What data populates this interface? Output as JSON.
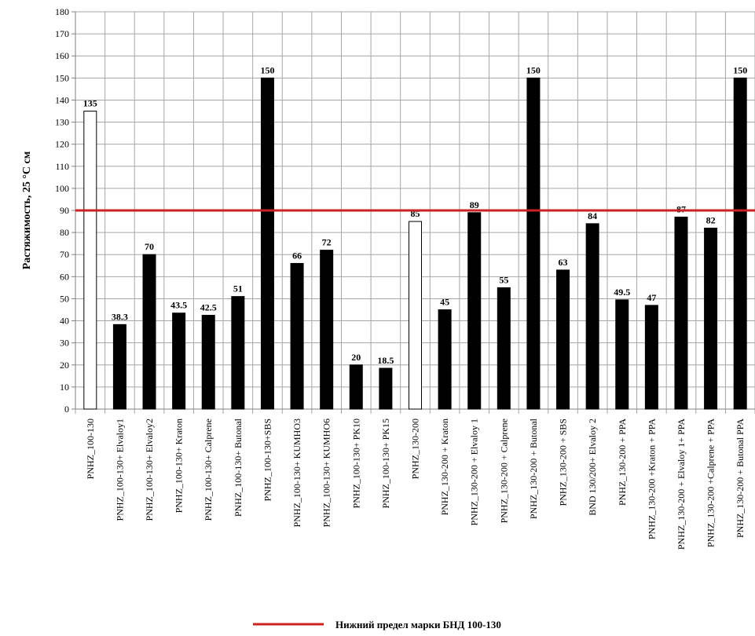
{
  "chart_data": {
    "type": "bar",
    "ylabel": "Растяжимость, 25 °С см",
    "xlabel": "",
    "ylim": [
      0,
      180
    ],
    "ytick_step": 10,
    "grid": true,
    "legend_position": "bottom",
    "categories": [
      "PNHZ_100-130",
      "PNHZ_100-130+ Elvaloy1",
      "PNHZ_100-130+ Elvaloy2",
      "PNHZ_100-130+ Kraton",
      "PNHZ_100-130+ Calprene",
      "PNHZ_100-130+ Butonal",
      "PNHZ_100-130+SBS",
      "PNHZ_100-130+ KUMHO3",
      "PNHZ_100-130+ KUMHO6",
      "PNHZ_100-130+ PK10",
      "PNHZ_100-130+ PK15",
      "PNHZ_130-200",
      "PNHZ_130-200 + Kraton",
      "PNHZ_130-200 + Elvaloy 1",
      "PNHZ_130-200 + Calprene",
      "PNHZ_130-200 + Butonal",
      "PNHZ_130-200 + SBS",
      "BND 130/200+ Elvaloy 2",
      "PNHZ_130-200 + PPA",
      "PNHZ_130-200 +Kraton + PPA",
      "PNHZ_130-200 + Elvaloy 1+ PPA",
      "PNHZ_130-200 +Calprene + PPA",
      "PNHZ_130-200 + Butonal PPA"
    ],
    "values": [
      135,
      38.3,
      70,
      43.5,
      42.5,
      51,
      150,
      66,
      72,
      20,
      18.5,
      85,
      45,
      89,
      55,
      150,
      63,
      84,
      49.5,
      47,
      87,
      82,
      150
    ],
    "data_labels": [
      "135",
      "38.3",
      "70",
      "43.5",
      "42.5",
      "51",
      "150",
      "66",
      "72",
      "20",
      "18.5",
      "85",
      "45",
      "89",
      "55",
      "150",
      "63",
      "84",
      "49.5",
      "47",
      "87",
      "82",
      "150"
    ],
    "bar_fill": [
      "white",
      "black",
      "black",
      "black",
      "black",
      "black",
      "black",
      "black",
      "black",
      "black",
      "black",
      "white",
      "black",
      "black",
      "black",
      "black",
      "black",
      "black",
      "black",
      "black",
      "black",
      "black",
      "black"
    ],
    "reference_line": {
      "value": 90,
      "color": "#cc2222",
      "label": "Нижний предел марки БНД 100-130"
    },
    "colors": {
      "bar_dark": "#000000",
      "bar_light": "#ffffff",
      "grid": "#a6a6a6",
      "axis": "#808080"
    }
  }
}
